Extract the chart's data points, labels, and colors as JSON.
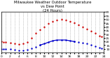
{
  "title": "Milwaukee Weather Outdoor Temperature\nvs Dew Point\n(24 Hours)",
  "title_fontsize": 3.8,
  "bg_color": "#ffffff",
  "plot_bg_color": "#ffffff",
  "grid_color": "#888888",
  "x_min": 0,
  "x_max": 24,
  "y_min": 5,
  "y_max": 60,
  "y_ticks_right": [
    10,
    15,
    20,
    25,
    30,
    35,
    40,
    45,
    50,
    55,
    60
  ],
  "x_ticks": [
    0,
    1,
    2,
    3,
    4,
    5,
    6,
    7,
    8,
    9,
    10,
    11,
    12,
    13,
    14,
    15,
    16,
    17,
    18,
    19,
    20,
    21,
    22,
    23,
    24
  ],
  "temp_color": "#cc0000",
  "dew_color": "#0000cc",
  "temp_x": [
    0.0,
    0.5,
    1.0,
    2.0,
    3.0,
    4.0,
    5.0,
    6.0,
    7.0,
    8.0,
    9.0,
    10.0,
    11.0,
    12.0,
    13.0,
    14.0,
    15.0,
    16.0,
    17.0,
    18.0,
    19.0,
    20.0,
    21.0,
    22.0,
    23.0,
    23.5
  ],
  "temp_y": [
    20,
    19,
    19,
    18,
    17,
    16,
    17,
    19,
    25,
    31,
    36,
    40,
    44,
    47,
    49,
    50,
    49,
    47,
    45,
    42,
    40,
    37,
    34,
    31,
    28,
    27
  ],
  "dew_x_dots": [
    0.0,
    0.5,
    1.0,
    2.0,
    3.0,
    4.0,
    5.0,
    6.0,
    7.0,
    8.0,
    9.0,
    17.0,
    18.0,
    19.0,
    20.0,
    21.0,
    22.0,
    23.0,
    23.5
  ],
  "dew_y_dots": [
    10,
    10,
    10,
    10,
    9,
    8,
    8,
    9,
    11,
    13,
    15,
    20,
    19,
    18,
    17,
    15,
    14,
    12,
    11
  ],
  "dew_x_line": [
    9.0,
    10.0,
    11.0,
    12.0,
    13.0,
    14.0,
    15.0,
    16.0,
    17.0
  ],
  "dew_y_line": [
    15,
    17,
    19,
    21,
    22,
    22,
    22,
    21,
    20
  ],
  "tick_fontsize": 3.2,
  "marker_size": 1.5
}
